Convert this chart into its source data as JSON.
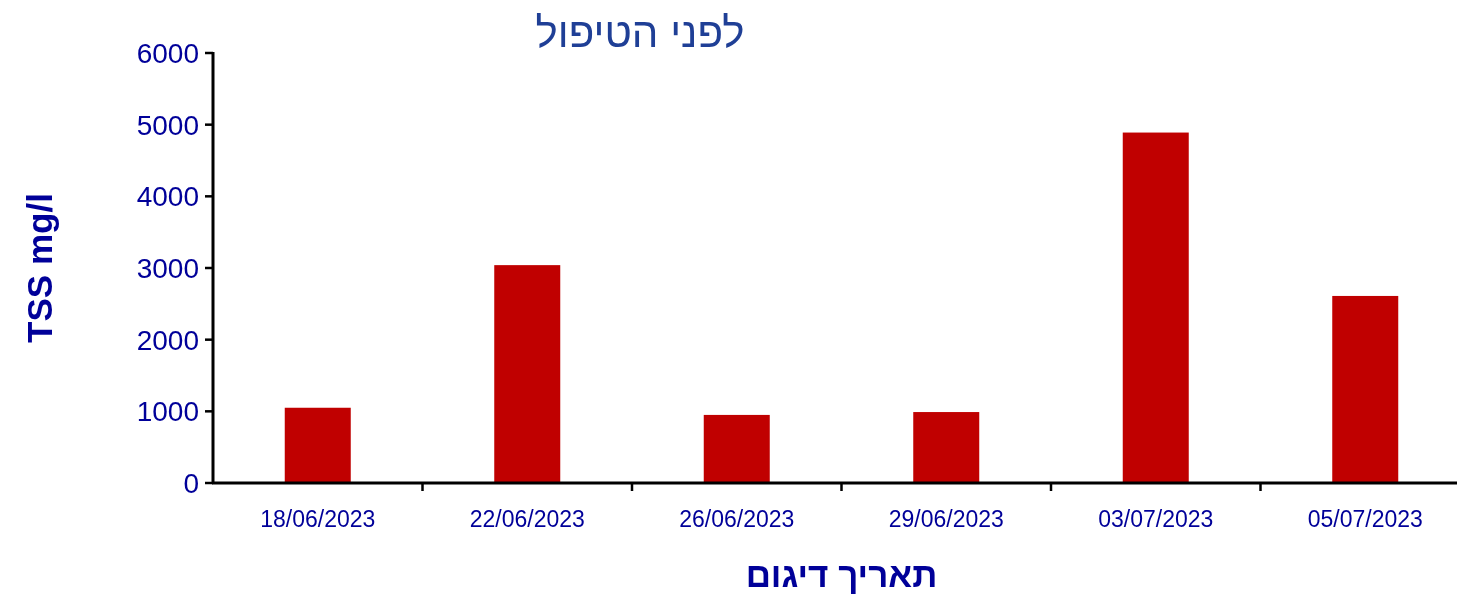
{
  "chart_data": {
    "type": "bar",
    "title": "לפני הטיפול",
    "xlabel": "תאריך דיגום",
    "ylabel": "TSS mg/l",
    "categories": [
      "18/06/2023",
      "22/06/2023",
      "26/06/2023",
      "29/06/2023",
      "03/07/2023",
      "05/07/2023"
    ],
    "values": [
      1050,
      3040,
      950,
      990,
      4890,
      2610
    ],
    "color": "#c00000",
    "ylim": [
      0,
      6000
    ],
    "yticks": [
      0,
      1000,
      2000,
      3000,
      4000,
      5000,
      6000
    ]
  }
}
